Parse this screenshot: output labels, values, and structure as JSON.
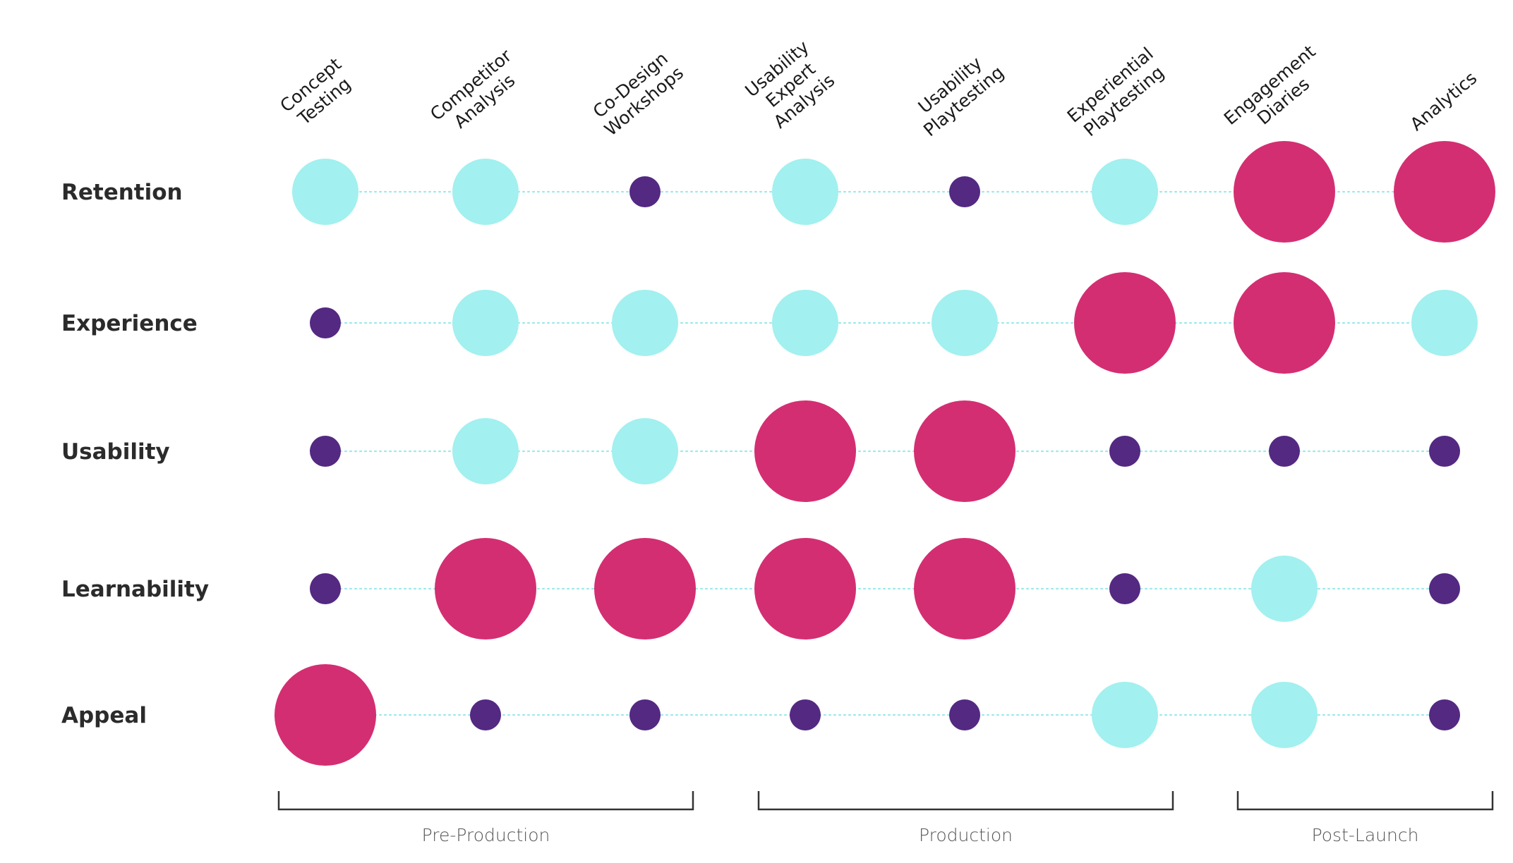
{
  "chart_data": {
    "type": "bubble-matrix",
    "columns": [
      [
        "Concept",
        "Testing"
      ],
      [
        "Competitor",
        "Analysis"
      ],
      [
        "Co-Design",
        "Workshops"
      ],
      [
        "Usability",
        "Expert",
        "Analysis"
      ],
      [
        "Usability",
        "Playtesting"
      ],
      [
        "Experiential",
        "Playtesting"
      ],
      [
        "Engagement",
        "Diaries"
      ],
      [
        "Analytics"
      ]
    ],
    "rows": [
      "Retention",
      "Experience",
      "Usability",
      "Learnability",
      "Appeal"
    ],
    "levels": {
      "high": {
        "color": "#d42e72"
      },
      "medium": {
        "color": "#a2f0ef"
      },
      "low": {
        "color": "#532982"
      }
    },
    "values": [
      [
        "medium",
        "medium",
        "low",
        "medium",
        "low",
        "medium",
        "high",
        "high"
      ],
      [
        "low",
        "medium",
        "medium",
        "medium",
        "medium",
        "high",
        "high",
        "medium"
      ],
      [
        "low",
        "medium",
        "medium",
        "high",
        "high",
        "low",
        "low",
        "low"
      ],
      [
        "low",
        "high",
        "high",
        "high",
        "high",
        "low",
        "medium",
        "low"
      ],
      [
        "high",
        "low",
        "low",
        "low",
        "low",
        "medium",
        "medium",
        "low"
      ]
    ],
    "phases": [
      {
        "label": "Pre-Production",
        "columns": [
          0,
          2
        ]
      },
      {
        "label": "Production",
        "columns": [
          3,
          5
        ]
      },
      {
        "label": "Post-Launch",
        "columns": [
          6,
          7
        ]
      }
    ]
  }
}
